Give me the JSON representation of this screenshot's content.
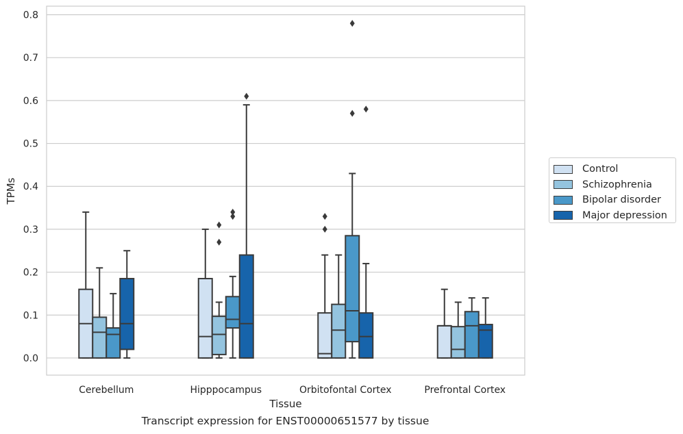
{
  "chart_data": {
    "type": "box",
    "xlabel": "Tissue",
    "ylabel": "TPMs",
    "ylim": [
      -0.04,
      0.82
    ],
    "yticks": [
      "0.0",
      "0.1",
      "0.2",
      "0.3",
      "0.4",
      "0.5",
      "0.6",
      "0.7",
      "0.8"
    ],
    "categories": [
      "Cerebellum",
      "Hipppocampus",
      "Orbitofontal Cortex",
      "Prefrontal Cortex"
    ],
    "series": [
      {
        "name": "Control",
        "color": "#d0e1f2",
        "boxes": [
          {
            "q1": 0.0,
            "median": 0.08,
            "q3": 0.16,
            "whisker_low": 0.0,
            "whisker_high": 0.34,
            "outliers": []
          },
          {
            "q1": 0.0,
            "median": 0.05,
            "q3": 0.185,
            "whisker_low": 0.0,
            "whisker_high": 0.3,
            "outliers": []
          },
          {
            "q1": 0.0,
            "median": 0.01,
            "q3": 0.105,
            "whisker_low": 0.0,
            "whisker_high": 0.24,
            "outliers": [
              0.3,
              0.33
            ]
          },
          {
            "q1": 0.0,
            "median": 0.075,
            "q3": 0.075,
            "whisker_low": 0.0,
            "whisker_high": 0.16,
            "outliers": []
          }
        ]
      },
      {
        "name": "Schizophrenia",
        "color": "#94c4df",
        "boxes": [
          {
            "q1": 0.0,
            "median": 0.06,
            "q3": 0.095,
            "whisker_low": 0.0,
            "whisker_high": 0.21,
            "outliers": []
          },
          {
            "q1": 0.008,
            "median": 0.055,
            "q3": 0.097,
            "whisker_low": 0.0,
            "whisker_high": 0.13,
            "outliers": [
              0.27,
              0.31
            ]
          },
          {
            "q1": 0.0,
            "median": 0.065,
            "q3": 0.125,
            "whisker_low": 0.0,
            "whisker_high": 0.24,
            "outliers": []
          },
          {
            "q1": 0.0,
            "median": 0.02,
            "q3": 0.073,
            "whisker_low": 0.0,
            "whisker_high": 0.13,
            "outliers": []
          }
        ]
      },
      {
        "name": "Bipolar disorder",
        "color": "#4a98c9",
        "boxes": [
          {
            "q1": 0.0,
            "median": 0.055,
            "q3": 0.07,
            "whisker_low": 0.0,
            "whisker_high": 0.15,
            "outliers": []
          },
          {
            "q1": 0.07,
            "median": 0.09,
            "q3": 0.143,
            "whisker_low": 0.0,
            "whisker_high": 0.19,
            "outliers": [
              0.33,
              0.34
            ]
          },
          {
            "q1": 0.038,
            "median": 0.11,
            "q3": 0.285,
            "whisker_low": 0.0,
            "whisker_high": 0.43,
            "outliers": [
              0.57,
              0.78
            ]
          },
          {
            "q1": 0.0,
            "median": 0.075,
            "q3": 0.108,
            "whisker_low": 0.0,
            "whisker_high": 0.14,
            "outliers": []
          }
        ]
      },
      {
        "name": "Major depression",
        "color": "#1764ab",
        "boxes": [
          {
            "q1": 0.02,
            "median": 0.08,
            "q3": 0.185,
            "whisker_low": 0.0,
            "whisker_high": 0.25,
            "outliers": []
          },
          {
            "q1": 0.0,
            "median": 0.08,
            "q3": 0.24,
            "whisker_low": 0.0,
            "whisker_high": 0.59,
            "outliers": [
              0.61
            ]
          },
          {
            "q1": 0.0,
            "median": 0.05,
            "q3": 0.105,
            "whisker_low": 0.0,
            "whisker_high": 0.22,
            "outliers": [
              0.58
            ]
          },
          {
            "q1": 0.0,
            "median": 0.065,
            "q3": 0.078,
            "whisker_low": 0.0,
            "whisker_high": 0.14,
            "outliers": []
          }
        ]
      }
    ],
    "grid": true,
    "legend_position": "right",
    "caption": "Transcript expression for ENST00000651577 by tissue"
  }
}
